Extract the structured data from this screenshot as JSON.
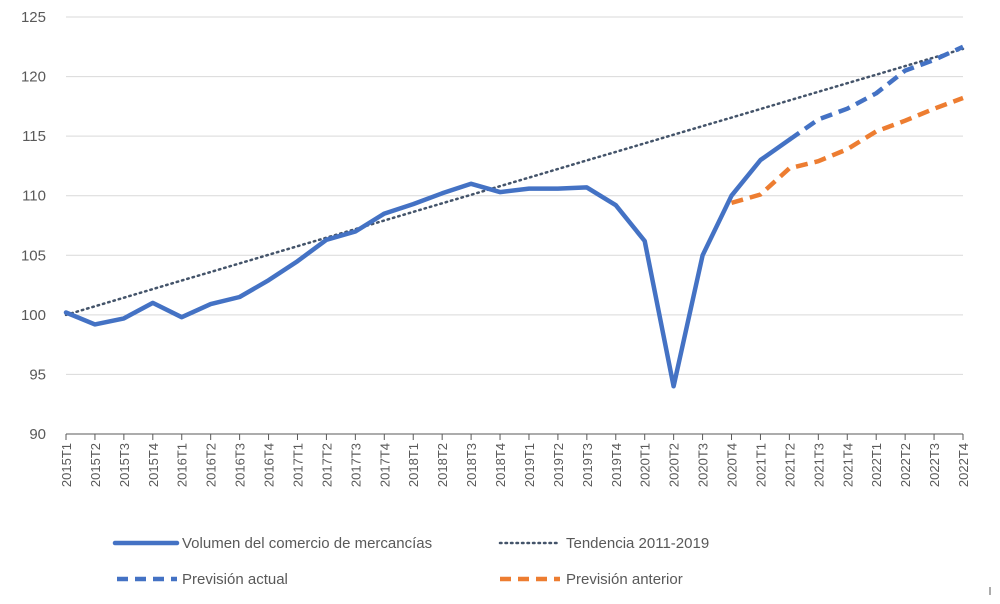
{
  "chart_data": {
    "type": "line",
    "categories": [
      "2015T1",
      "2015T2",
      "2015T3",
      "2015T4",
      "2016T1",
      "2016T2",
      "2016T3",
      "2016T4",
      "2017T1",
      "2017T2",
      "2017T3",
      "2017T4",
      "2018T1",
      "2018T2",
      "2018T3",
      "2018T4",
      "2019T1",
      "2019T2",
      "2019T3",
      "2019T4",
      "2020T1",
      "2020T2",
      "2020T3",
      "2020T4",
      "2021T1",
      "2021T2",
      "2021T3",
      "2021T4",
      "2022T1",
      "2022T2",
      "2022T3",
      "2022T4"
    ],
    "ylim": [
      90,
      125
    ],
    "yticks": [
      "90",
      "95",
      "100",
      "105",
      "110",
      "115",
      "120",
      "125"
    ],
    "grid": "horizontal",
    "legend_position": "bottom",
    "series": [
      {
        "name": "Volumen del comercio de mercancías",
        "style": "solid",
        "color": "#4472C4",
        "values": [
          100.2,
          99.2,
          99.7,
          101.0,
          99.8,
          100.9,
          101.5,
          102.9,
          104.5,
          106.3,
          107.0,
          108.5,
          109.3,
          110.2,
          111.0,
          110.3,
          110.6,
          110.6,
          110.7,
          109.2,
          106.2,
          94.0,
          105.0,
          110.0,
          113.0,
          114.7,
          null,
          null,
          null,
          null,
          null,
          null
        ]
      },
      {
        "name": "Tendencia 2011-2019",
        "style": "dotted",
        "color": "#44546A",
        "values": [
          100.0,
          100.72,
          101.44,
          102.16,
          102.88,
          103.6,
          104.32,
          105.04,
          105.76,
          106.48,
          107.2,
          107.92,
          108.64,
          109.36,
          110.08,
          110.8,
          111.52,
          112.24,
          112.96,
          113.68,
          114.4,
          115.12,
          115.84,
          116.56,
          117.28,
          118.0,
          118.72,
          119.44,
          120.16,
          120.88,
          121.6,
          122.32
        ]
      },
      {
        "name": "Previsión actual",
        "style": "dashed",
        "color": "#4472C4",
        "values": [
          null,
          null,
          null,
          null,
          null,
          null,
          null,
          null,
          null,
          null,
          null,
          null,
          null,
          null,
          null,
          null,
          null,
          null,
          null,
          null,
          null,
          null,
          null,
          null,
          null,
          114.7,
          116.4,
          117.3,
          118.6,
          120.5,
          121.4,
          122.5
        ]
      },
      {
        "name": "Previsión anterior",
        "style": "dashed",
        "color": "#ED7D31",
        "values": [
          null,
          null,
          null,
          null,
          null,
          null,
          null,
          null,
          null,
          null,
          null,
          null,
          null,
          null,
          null,
          null,
          null,
          null,
          null,
          null,
          null,
          null,
          null,
          109.4,
          110.1,
          112.3,
          112.9,
          113.9,
          115.4,
          116.3,
          117.3,
          118.2
        ]
      }
    ]
  }
}
